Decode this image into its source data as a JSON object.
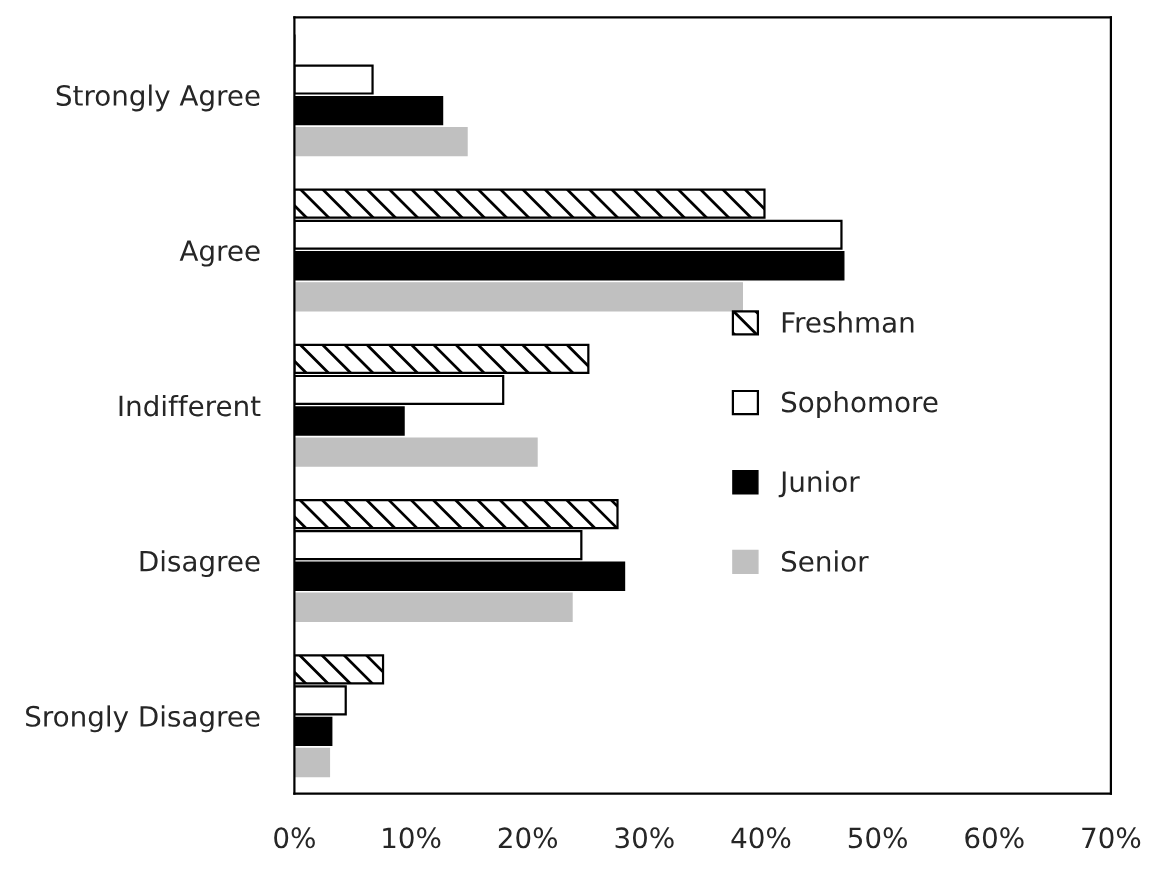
{
  "chart_data": {
    "type": "bar",
    "orientation": "horizontal",
    "categories": [
      "Strongly Agree",
      "Agree",
      "Indifferent",
      "Disagree",
      "Srongly Disagree"
    ],
    "series": [
      {
        "name": "Freshman",
        "color": "#000000",
        "values": [
          0,
          40.3,
          25.2,
          27.7,
          7.6
        ]
      },
      {
        "name": "Sophomore",
        "color": "#ffffff",
        "values": [
          6.7,
          46.9,
          17.9,
          24.6,
          4.4
        ]
      },
      {
        "name": "Junior",
        "color": "#000000",
        "values": [
          12.7,
          47.1,
          9.4,
          28.3,
          3.2
        ]
      },
      {
        "name": "Senior",
        "color": "#c0c0c0",
        "values": [
          14.8,
          38.4,
          20.8,
          23.8,
          3.0
        ]
      }
    ],
    "xlim": [
      0,
      70
    ],
    "xticks": [
      {
        "value": 0,
        "label": "0%"
      },
      {
        "value": 10,
        "label": "10%"
      },
      {
        "value": 20,
        "label": "20%"
      },
      {
        "value": 30,
        "label": "30%"
      },
      {
        "value": 40,
        "label": "40%"
      },
      {
        "value": 50,
        "label": "50%"
      },
      {
        "value": 60,
        "label": "60%"
      },
      {
        "value": 70,
        "label": "70%"
      }
    ],
    "grid": false,
    "legend": "right"
  }
}
